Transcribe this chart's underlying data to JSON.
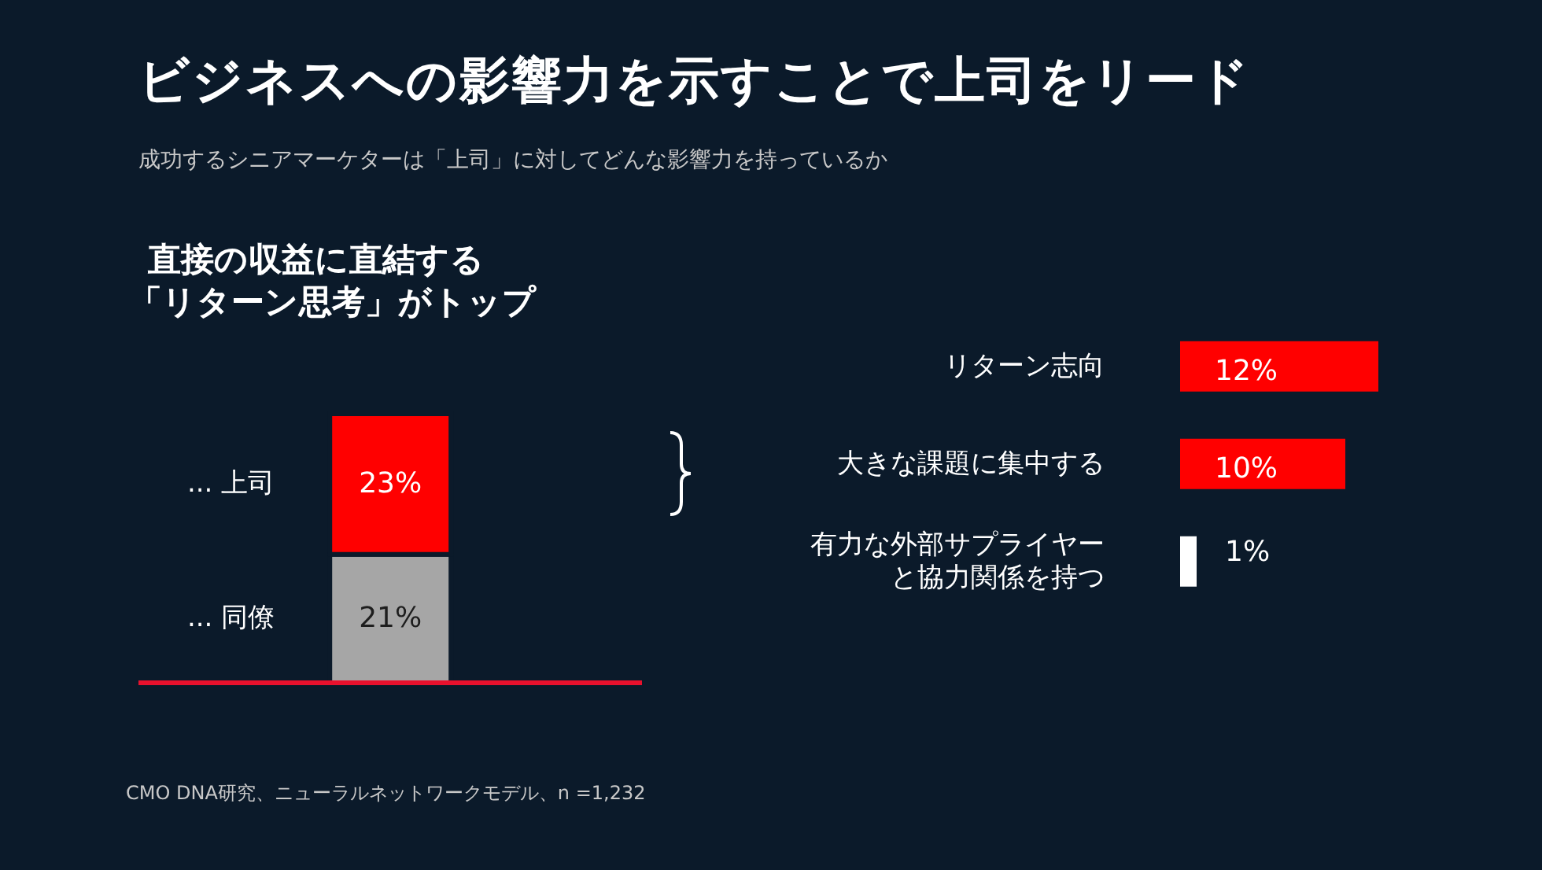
{
  "chart_data": [
    {
      "type": "bar",
      "title": "ビジネスへの影響力を示すことで上司をリード",
      "subtitle": "成功するシニアマーケターは「上司」に対してどんな影響力を持っているか",
      "stacked": true,
      "categories": [
        null
      ],
      "series": [
        {
          "name": "... 同僚",
          "color": "#a6a6a6",
          "values": [
            21
          ],
          "value_labels": [
            "21%"
          ]
        },
        {
          "name": "... 上司",
          "color": "#ff0000",
          "values": [
            23
          ],
          "value_labels": [
            "23%"
          ]
        }
      ],
      "annotations": [
        "直接の収益に直結する",
        "「リターン思考」がトップ",
        "CMO DNA研究、ニューラルネットワークモデル、n =1,232"
      ]
    },
    {
      "type": "bar",
      "orientation": "horizontal",
      "categories": [
        "リターン志向",
        "大きな課題に集中する",
        "有力な外部サプライヤーと協力関係を持つ"
      ],
      "values": [
        12,
        10,
        1
      ],
      "colors": [
        "#ff0000",
        "#ff0000",
        "#ffffff"
      ],
      "value_labels": [
        "12%",
        "10%",
        "1%"
      ]
    }
  ]
}
